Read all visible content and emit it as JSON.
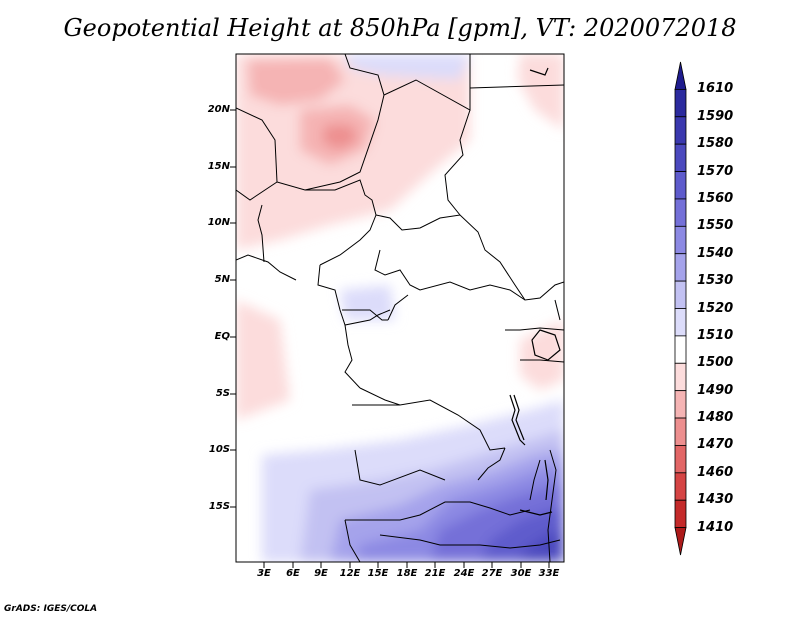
{
  "title": "Geopotential Height at 850hPa [gpm], VT: 2020072018",
  "credit": "GrADS: IGES/COLA",
  "map": {
    "lat_labels": [
      "20N",
      "15N",
      "10N",
      "5N",
      "EQ",
      "5S",
      "10S",
      "15S"
    ],
    "lon_labels": [
      "3E",
      "6E",
      "9E",
      "12E",
      "15E",
      "18E",
      "21E",
      "24E",
      "27E",
      "30E",
      "33E"
    ],
    "lon_range": [
      0,
      34.5
    ],
    "lat_range": [
      -20,
      25
    ]
  },
  "colorbar": {
    "labels": [
      "1610",
      "1590",
      "1580",
      "1570",
      "1560",
      "1550",
      "1540",
      "1530",
      "1520",
      "1510",
      "1500",
      "1490",
      "1480",
      "1470",
      "1460",
      "1430",
      "1410"
    ],
    "colors": [
      "#1f1c8e",
      "#2b2a9e",
      "#3a38ae",
      "#4b49be",
      "#5e5bcc",
      "#7470d8",
      "#8c89e3",
      "#a5a3eb",
      "#c2c1f2",
      "#dcdcfa",
      "#ffffff",
      "#fcdcdc",
      "#f5b4b4",
      "#ed8f8f",
      "#e26666",
      "#d54444",
      "#c42a2a",
      "#ad1a1a"
    ]
  }
}
